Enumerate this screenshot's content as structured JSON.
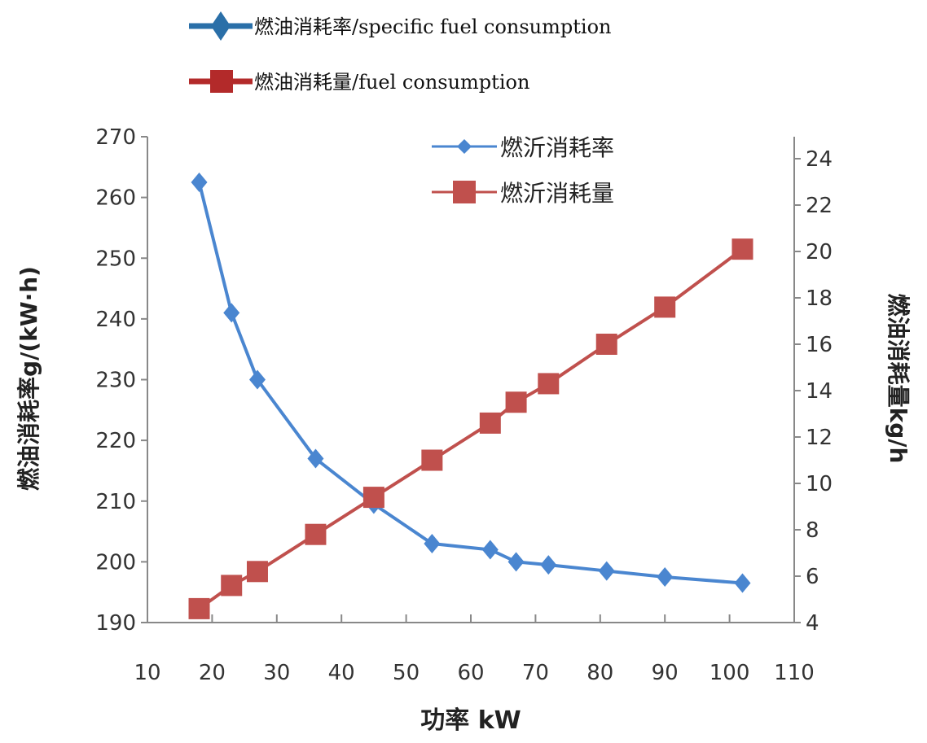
{
  "chart_data": {
    "type": "line",
    "top_legend": [
      {
        "label": "燃油消耗率/specific fuel consumption",
        "color": "#2a6fa8",
        "marker": "diamond"
      },
      {
        "label": "燃油消耗量/fuel consumption",
        "color": "#b32a2a",
        "marker": "square"
      }
    ],
    "inner_legend": [
      "燃沂消耗率",
      "燃沂消耗量"
    ],
    "xlabel": "功率 kW",
    "ylabel_left": "燃油消耗率g/(kW·h)",
    "ylabel_right": "燃油消耗量kg/h",
    "xlim": [
      10,
      110
    ],
    "ylim_left": [
      190,
      270
    ],
    "ylim_right": [
      4,
      24
    ],
    "x_ticks": [
      "10",
      "20",
      "30",
      "40",
      "50",
      "60",
      "70",
      "80",
      "90",
      "100",
      "110"
    ],
    "y_left_ticks": [
      "190",
      "200",
      "210",
      "220",
      "230",
      "240",
      "250",
      "260",
      "270"
    ],
    "y_right_ticks": [
      "4",
      "6",
      "8",
      "10",
      "12",
      "14",
      "16",
      "18",
      "20",
      "22",
      "24"
    ],
    "grid": false,
    "series": [
      {
        "name": "燃沂消耗率",
        "axis": "left",
        "color": "#4a86d0",
        "marker": "diamond",
        "x": [
          18,
          23,
          27,
          36,
          45,
          54,
          63,
          67,
          72,
          81,
          90,
          102
        ],
        "y": [
          262.5,
          241,
          230,
          217,
          209.5,
          203,
          202,
          200,
          199.5,
          198.5,
          197.5,
          196.5
        ]
      },
      {
        "name": "燃沂消耗量",
        "axis": "right",
        "color": "#c0504d",
        "marker": "square",
        "x": [
          18,
          23,
          27,
          36,
          45,
          54,
          63,
          67,
          72,
          81,
          90,
          102
        ],
        "y": [
          4.6,
          5.6,
          6.2,
          7.8,
          9.4,
          11.0,
          12.6,
          13.5,
          14.3,
          16.0,
          17.6,
          20.1
        ]
      }
    ]
  }
}
